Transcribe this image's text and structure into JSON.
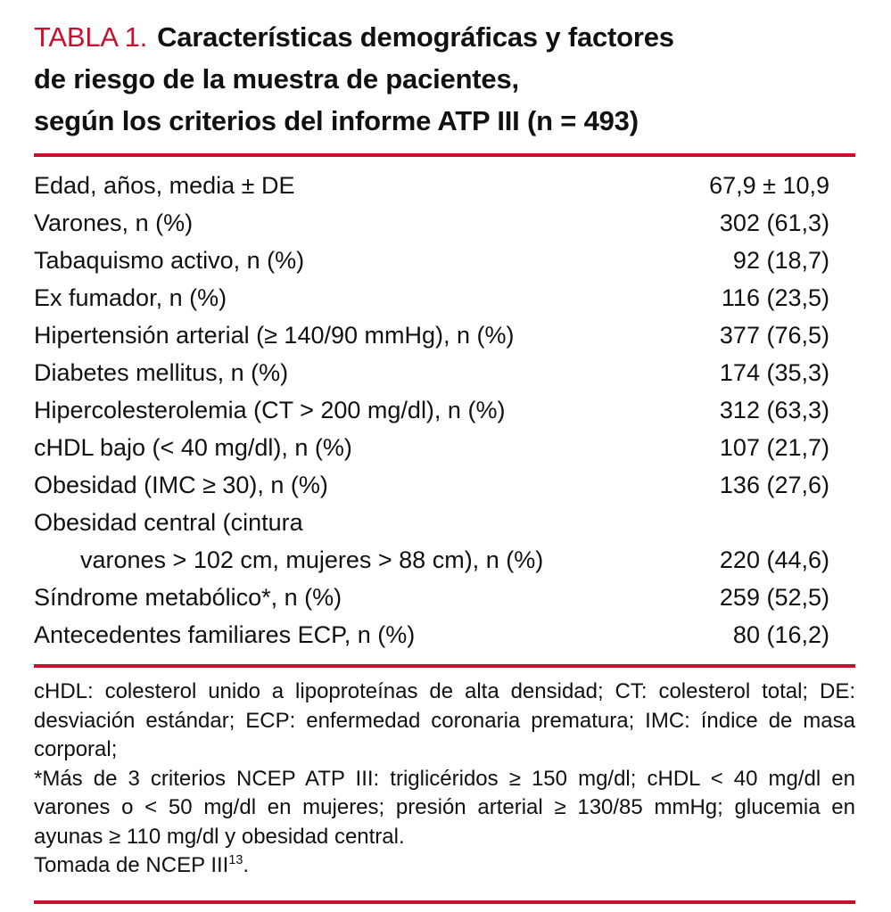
{
  "colors": {
    "accent": "#c8102e",
    "text": "#111111",
    "background": "#ffffff"
  },
  "title": {
    "label": "TABLA 1.",
    "lines": [
      "Características demográficas y factores",
      "de riesgo de la muestra de pacientes,",
      "según los criterios del informe ATP III (n = 493)"
    ]
  },
  "table": {
    "rows": [
      {
        "label": "Edad, años, media ± DE",
        "value": "67,9 ± 10,9"
      },
      {
        "label": "Varones, n (%)",
        "value": "302 (61,3)"
      },
      {
        "label": "Tabaquismo activo, n (%)",
        "value": "92 (18,7)"
      },
      {
        "label": "Ex fumador, n (%)",
        "value": "116 (23,5)"
      },
      {
        "label": "Hipertensión arterial (≥ 140/90 mmHg), n (%)",
        "value": "377 (76,5)"
      },
      {
        "label": "Diabetes mellitus, n (%)",
        "value": "174 (35,3)"
      },
      {
        "label": "Hipercolesterolemia (CT > 200 mg/dl), n (%)",
        "value": "312 (63,3)"
      },
      {
        "label": "cHDL bajo (< 40 mg/dl), n (%)",
        "value": "107 (21,7)"
      },
      {
        "label": "Obesidad (IMC ≥ 30), n (%)",
        "value": "136 (27,6)"
      },
      {
        "label": "Obesidad central (cintura",
        "value": ""
      },
      {
        "label": "varones > 102 cm, mujeres > 88 cm), n (%)",
        "value": "220 (44,6)"
      },
      {
        "label": "Síndrome metabólico*, n (%)",
        "value": "259 (52,5)"
      },
      {
        "label": "Antecedentes familiares ECP, n (%)",
        "value": "80 (16,2)"
      }
    ]
  },
  "footnotes": {
    "abbreviations": "cHDL: colesterol unido a lipoproteínas de alta densidad; CT: colesterol total; DE: desviación estándar; ECP: enfermedad coronaria prematura; IMC: índice de masa corporal;",
    "criteria": "*Más de 3 criterios NCEP ATP III: triglicéridos ≥ 150 mg/dl; cHDL < 40 mg/dl en varones o < 50 mg/dl en mujeres; presión arterial ≥ 130/85 mmHg; glucemia en ayunas ≥ 110 mg/dl y obesidad central.",
    "source": {
      "text": "Tomada de NCEP III",
      "sup": "13",
      "after": "."
    }
  }
}
